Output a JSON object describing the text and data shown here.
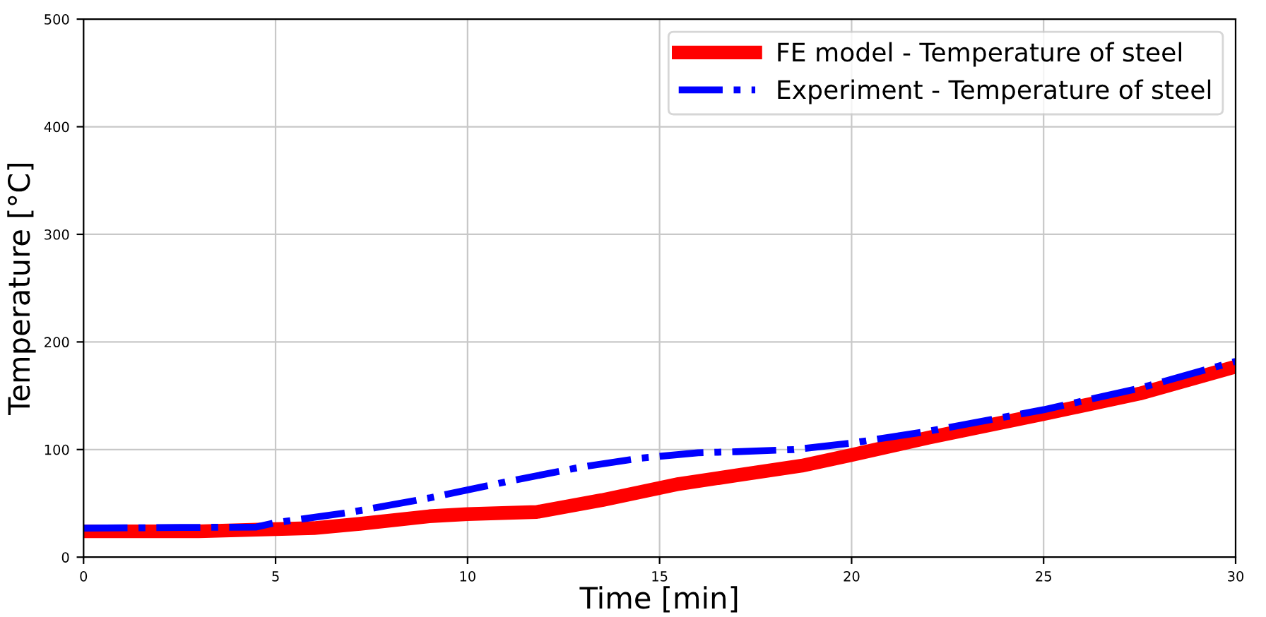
{
  "chart_data": {
    "type": "line",
    "xlabel": "Time [min]",
    "ylabel": "Temperature [°C]",
    "series": [
      {
        "name": "FE model - Temperature of steel",
        "color": "#ff0000",
        "line_style": "solid",
        "x": [
          0,
          3,
          5,
          6,
          7.2,
          9,
          10,
          11.8,
          13.5,
          15.5,
          17,
          18.7,
          20,
          22,
          25,
          27.5,
          30
        ],
        "values": [
          24,
          24,
          26,
          27,
          31,
          38,
          40,
          42,
          53,
          68,
          76,
          85,
          95,
          111,
          133,
          152,
          177
        ]
      },
      {
        "name": "Experiment - Temperature of steel",
        "color": "#0000ff",
        "line_style": "dashdot",
        "x": [
          0,
          4.5,
          5,
          7,
          9,
          11,
          13,
          14.5,
          16,
          17,
          18.5,
          20,
          22,
          25,
          27.5,
          30
        ],
        "values": [
          27,
          28,
          32,
          42,
          55,
          70,
          84,
          92,
          97,
          98,
          100,
          106,
          117,
          137,
          157,
          182
        ]
      }
    ],
    "xlim": [
      0,
      30
    ],
    "xticks": [
      0,
      5,
      10,
      15,
      20,
      25,
      30
    ],
    "ylim": [
      0,
      500
    ],
    "yticks": [
      0,
      100,
      200,
      300,
      400,
      500
    ],
    "grid": true,
    "legend": "top right",
    "marker": "none"
  }
}
